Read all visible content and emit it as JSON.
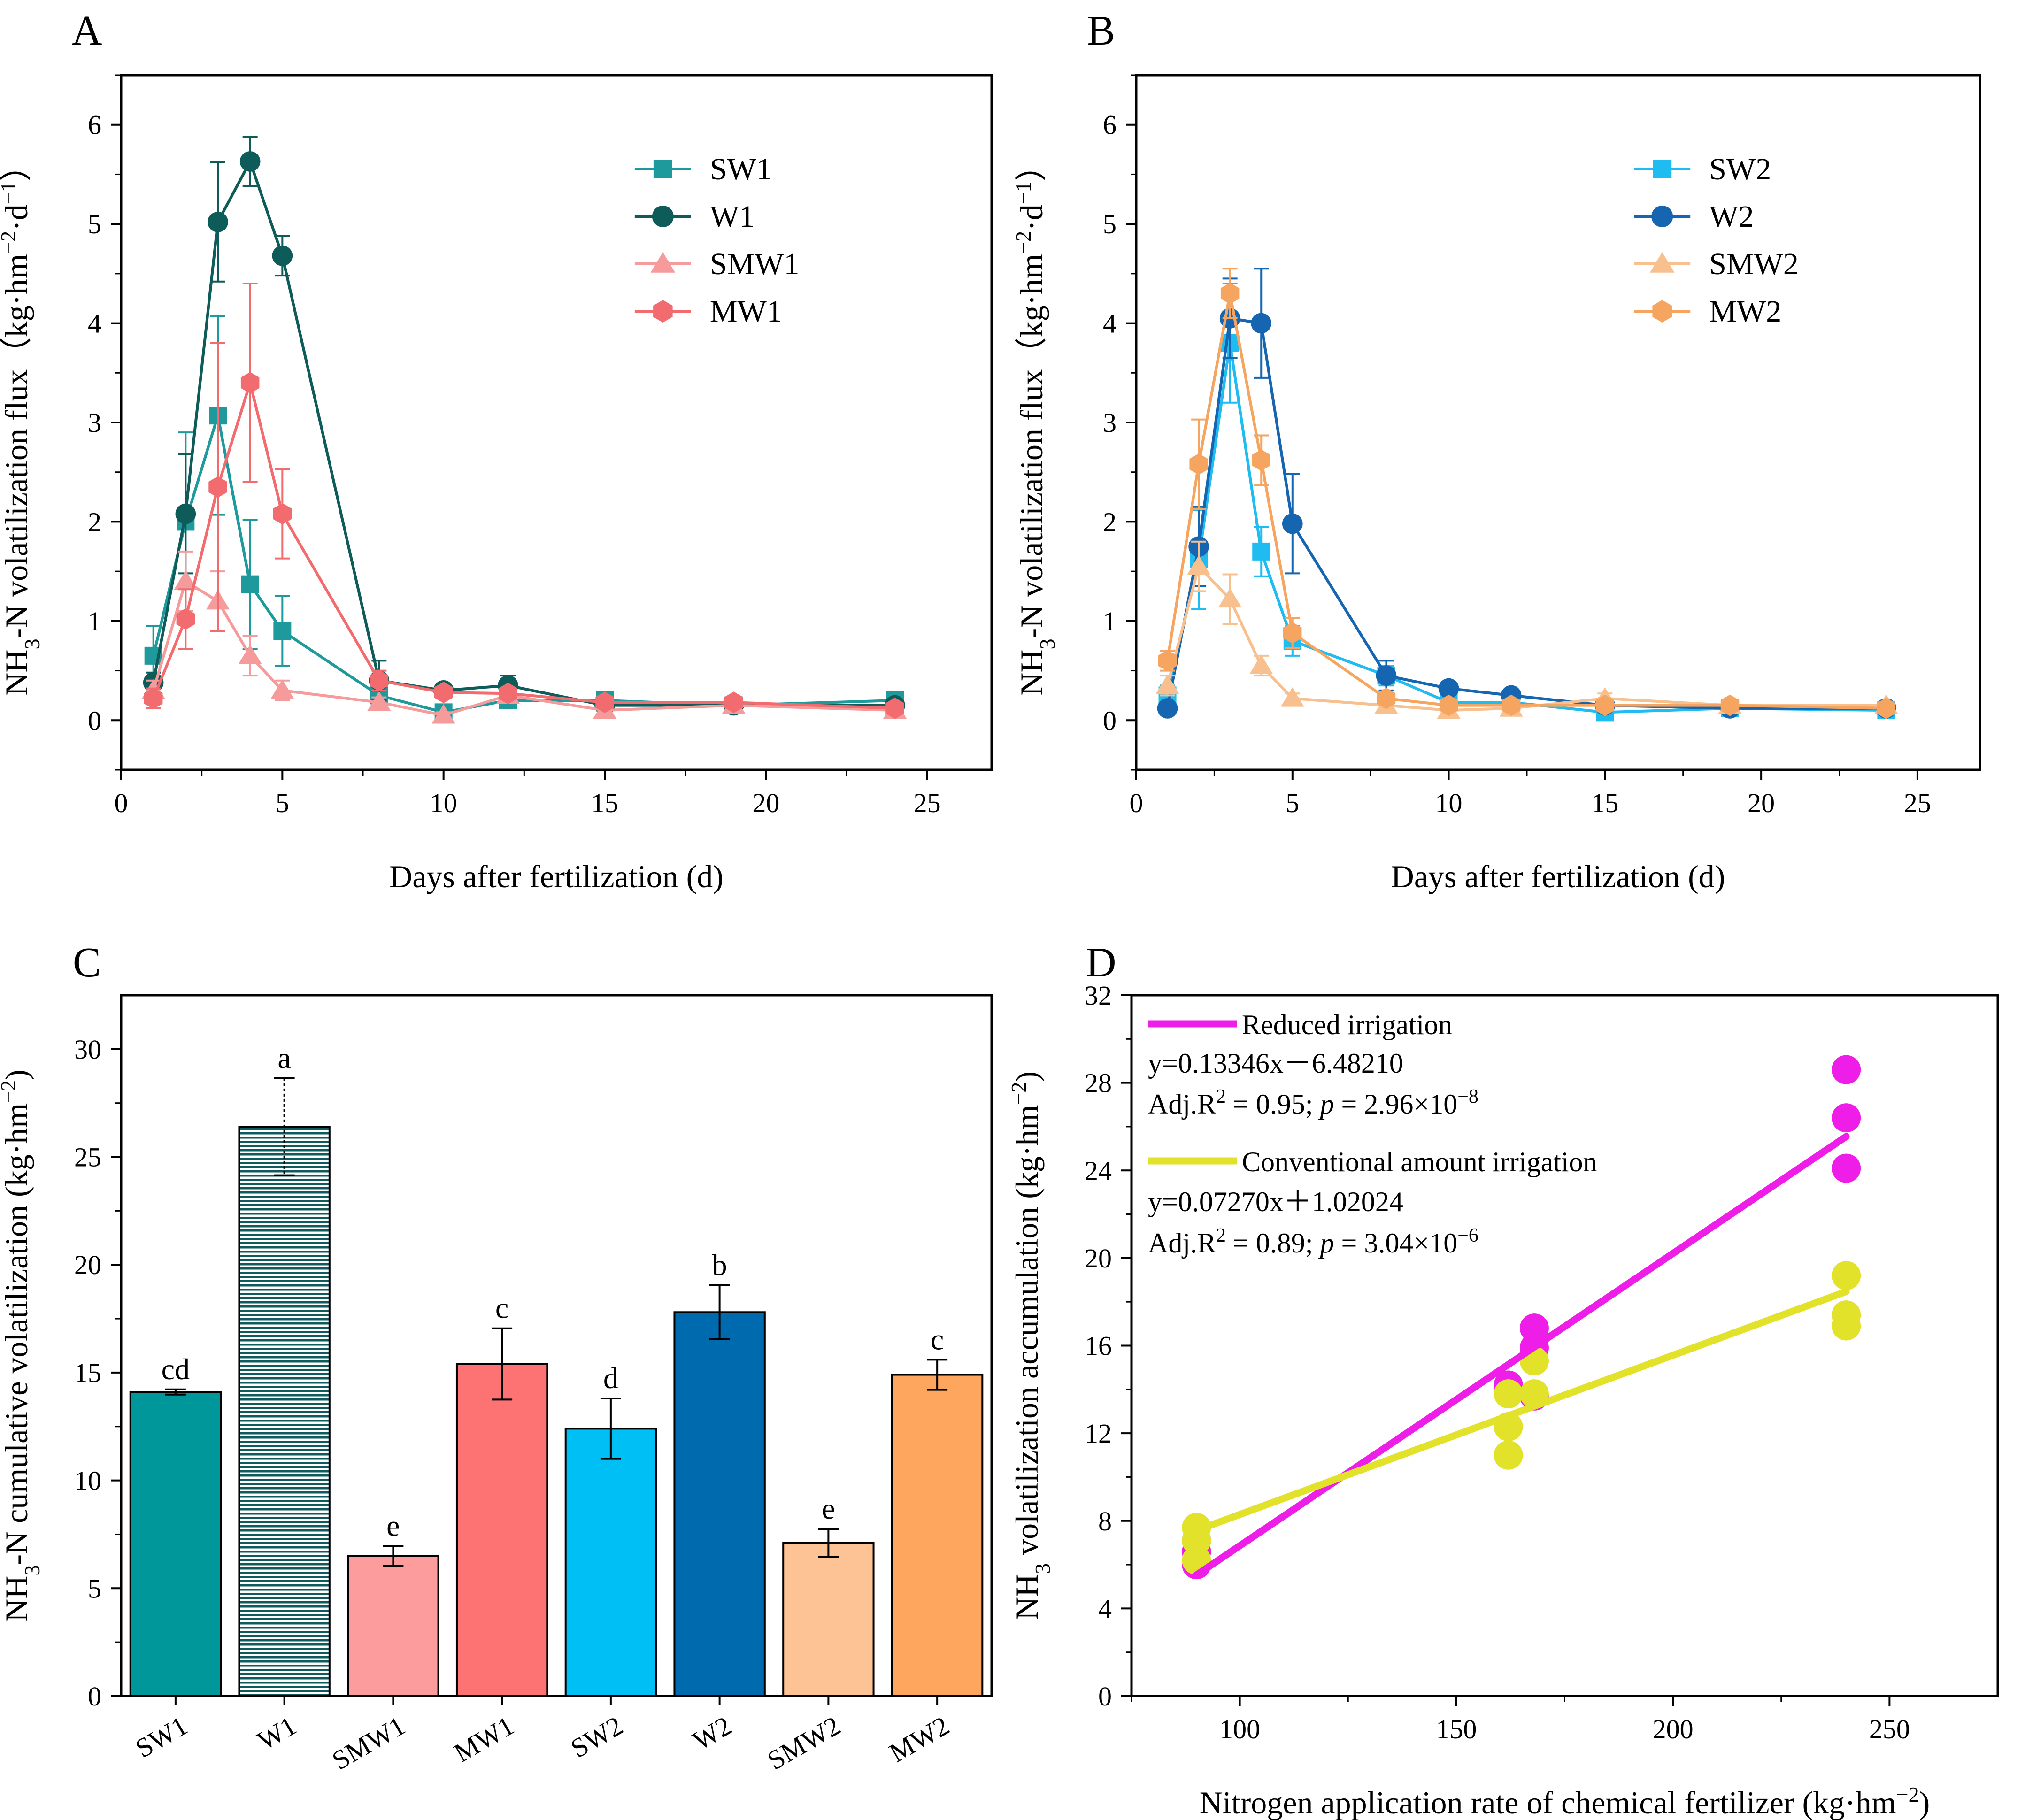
{
  "chart_data": [
    {
      "panel": "A",
      "type": "line",
      "xlabel": "Days after fertilization (d)",
      "ylabel": "NH3-N volatilization flux（kg·hm−2·d−1）",
      "ylabel_parts": {
        "a": "NH",
        "b": "3",
        "c": "-N volatilization flux（kg·hm",
        "d": "−2",
        "e": "·d",
        "f": "−1",
        "g": "）"
      },
      "xlim": [
        0,
        27
      ],
      "ylim": [
        -0.5,
        6.5
      ],
      "xticks": [
        0,
        5,
        10,
        15,
        20,
        25
      ],
      "yticks": [
        0,
        1,
        2,
        3,
        4,
        5,
        6
      ],
      "legend_position": "top-right",
      "x": [
        1,
        2,
        3,
        4,
        5,
        8,
        10,
        12,
        15,
        19,
        24
      ],
      "series": [
        {
          "name": "SW1",
          "marker": "square",
          "color": "#1f9a9c",
          "values": [
            0.65,
            2.0,
            3.07,
            1.37,
            0.9,
            0.25,
            0.08,
            0.2,
            0.2,
            0.15,
            0.2
          ],
          "err": [
            0.3,
            0.9,
            1.0,
            0.65,
            0.35,
            0.1,
            0.05,
            0.05,
            0.05,
            0.05,
            0.05
          ]
        },
        {
          "name": "W1",
          "marker": "circle",
          "color": "#0e5c5a",
          "values": [
            0.38,
            2.08,
            5.02,
            5.63,
            4.68,
            0.4,
            0.3,
            0.35,
            0.15,
            0.15,
            0.15
          ],
          "err": [
            0.1,
            0.6,
            0.6,
            0.25,
            0.2,
            0.2,
            0.05,
            0.1,
            0.05,
            0.05,
            0.05
          ]
        },
        {
          "name": "SMW1",
          "marker": "triangle",
          "color": "#f59b9b",
          "values": [
            0.3,
            1.4,
            1.2,
            0.65,
            0.3,
            0.18,
            0.05,
            0.25,
            0.1,
            0.15,
            0.1
          ],
          "err": [
            0.1,
            0.3,
            0.3,
            0.2,
            0.1,
            0.05,
            0.03,
            0.05,
            0.03,
            0.03,
            0.03
          ]
        },
        {
          "name": "MW1",
          "marker": "hexagon",
          "color": "#f26c6f",
          "values": [
            0.22,
            1.02,
            2.35,
            3.4,
            2.08,
            0.4,
            0.28,
            0.27,
            0.18,
            0.18,
            0.12
          ],
          "err": [
            0.1,
            0.3,
            1.45,
            1.0,
            0.45,
            0.1,
            0.05,
            0.05,
            0.05,
            0.05,
            0.05
          ]
        }
      ]
    },
    {
      "panel": "B",
      "type": "line",
      "xlabel": "Days after fertilization (d)",
      "ylabel": "NH3-N volatilization flux（kg·hm−2·d−1）",
      "xlim": [
        0,
        27
      ],
      "ylim": [
        -0.5,
        6.5
      ],
      "xticks": [
        0,
        5,
        10,
        15,
        20,
        25
      ],
      "yticks": [
        0,
        1,
        2,
        3,
        4,
        5,
        6
      ],
      "legend_position": "top-right",
      "x": [
        1,
        2,
        3,
        4,
        5,
        8,
        10,
        12,
        15,
        19,
        24
      ],
      "series": [
        {
          "name": "SW2",
          "marker": "square",
          "color": "#1ebcf0",
          "values": [
            0.25,
            1.62,
            3.8,
            1.7,
            0.8,
            0.45,
            0.18,
            0.18,
            0.08,
            0.12,
            0.1
          ],
          "err": [
            0.1,
            0.5,
            0.6,
            0.25,
            0.15,
            0.1,
            0.05,
            0.05,
            0.03,
            0.03,
            0.03
          ]
        },
        {
          "name": "W2",
          "marker": "circle",
          "color": "#1565b0",
          "values": [
            0.12,
            1.75,
            4.05,
            4.0,
            1.98,
            0.45,
            0.32,
            0.25,
            0.15,
            0.12,
            0.12
          ],
          "err": [
            0.05,
            0.4,
            0.4,
            0.55,
            0.5,
            0.15,
            0.05,
            0.05,
            0.03,
            0.03,
            0.03
          ]
        },
        {
          "name": "SMW2",
          "marker": "triangle",
          "color": "#f8c08e",
          "values": [
            0.35,
            1.55,
            1.22,
            0.55,
            0.22,
            0.15,
            0.1,
            0.12,
            0.22,
            0.15,
            0.15
          ],
          "err": [
            0.1,
            0.25,
            0.25,
            0.1,
            0.05,
            0.05,
            0.03,
            0.03,
            0.05,
            0.03,
            0.03
          ]
        },
        {
          "name": "MW2",
          "marker": "hexagon",
          "color": "#f5a560",
          "values": [
            0.6,
            2.58,
            4.3,
            2.62,
            0.88,
            0.22,
            0.15,
            0.15,
            0.15,
            0.15,
            0.12
          ],
          "err": [
            0.1,
            0.45,
            0.25,
            0.25,
            0.15,
            0.05,
            0.03,
            0.03,
            0.03,
            0.03,
            0.03
          ]
        }
      ]
    },
    {
      "panel": "C",
      "type": "bar",
      "ylabel": "NH3-N cumulative volatilization (kg·hm−2)",
      "ylabel_parts": {
        "a": "NH",
        "b": "3",
        "c": "-N cumulative volatilization (kg·hm",
        "d": "−2",
        "e": ")"
      },
      "ylim": [
        0,
        32.5
      ],
      "yticks": [
        0,
        5,
        10,
        15,
        20,
        25,
        30
      ],
      "categories": [
        "SW1",
        "W1",
        "SMW1",
        "MW1",
        "SW2",
        "W2",
        "SMW2",
        "MW2"
      ],
      "values": [
        14.1,
        26.4,
        6.5,
        15.4,
        12.4,
        17.8,
        7.1,
        14.9
      ],
      "errors": [
        0.12,
        2.25,
        0.45,
        1.65,
        1.4,
        1.25,
        0.65,
        0.7
      ],
      "letters": [
        "cd",
        "a",
        "e",
        "c",
        "d",
        "b",
        "e",
        "c"
      ],
      "colors": [
        "#00979a",
        "#0e5a5c",
        "#fd9c9c",
        "#fd7272",
        "#00bff5",
        "#006aaf",
        "#fdc394",
        "#fea55e"
      ]
    },
    {
      "panel": "D",
      "type": "scatter",
      "xlabel": "Nitrogen application rate of chemical fertilizer (kg·hm−2)",
      "xlabel_parts": {
        "a": "Nitrogen application rate of chemical fertilizer (kg·hm",
        "b": "−2",
        "c": ")"
      },
      "ylabel": "NH3 volatilization accumulation (kg·hm−2)",
      "ylabel_parts": {
        "a": "NH",
        "b": "3",
        "c": " volatilization accumulation (kg·hm",
        "d": "−2",
        "e": ")"
      },
      "xlim": [
        75,
        275
      ],
      "ylim": [
        0,
        32
      ],
      "xticks": [
        100,
        150,
        200,
        250
      ],
      "yticks": [
        0,
        4,
        8,
        12,
        16,
        20,
        24,
        28,
        32
      ],
      "legend_position": "top-left",
      "series": [
        {
          "name": "Reduced irrigation",
          "color": "#ee1ee8",
          "points": [
            [
              90,
              6.0
            ],
            [
              90,
              6.6
            ],
            [
              90,
              7.1
            ],
            [
              162,
              14.2
            ],
            [
              168,
              13.7
            ],
            [
              168,
              15.9
            ],
            [
              168,
              16.8
            ],
            [
              240,
              24.1
            ],
            [
              240,
              26.4
            ],
            [
              240,
              28.6
            ]
          ],
          "fit": {
            "slope": 0.13346,
            "intercept": -6.4821,
            "x_range": [
              90,
              240
            ]
          },
          "equation": "y=0.13346x－6.48210",
          "stats": {
            "prefix": "Adj.R",
            "sup": "2",
            "mid": " = 0.95;  ",
            "p": "p",
            "eq": " = 2.96×10",
            "exp": "−8"
          }
        },
        {
          "name": "Conventional amount irrigation",
          "color": "#e3e22b",
          "points": [
            [
              90,
              6.2
            ],
            [
              90,
              7.1
            ],
            [
              90,
              7.7
            ],
            [
              162,
              11.0
            ],
            [
              162,
              12.3
            ],
            [
              162,
              13.8
            ],
            [
              168,
              13.8
            ],
            [
              168,
              15.3
            ],
            [
              240,
              16.9
            ],
            [
              240,
              17.4
            ],
            [
              240,
              19.2
            ]
          ],
          "fit": {
            "slope": 0.0727,
            "intercept": 1.02024,
            "x_range": [
              90,
              240
            ]
          },
          "equation": "y=0.07270x＋1.02024",
          "stats": {
            "prefix": "Adj.R",
            "sup": "2",
            "mid": " = 0.89;  ",
            "p": "p",
            "eq": " = 3.04×10",
            "exp": "−6"
          }
        }
      ]
    }
  ]
}
